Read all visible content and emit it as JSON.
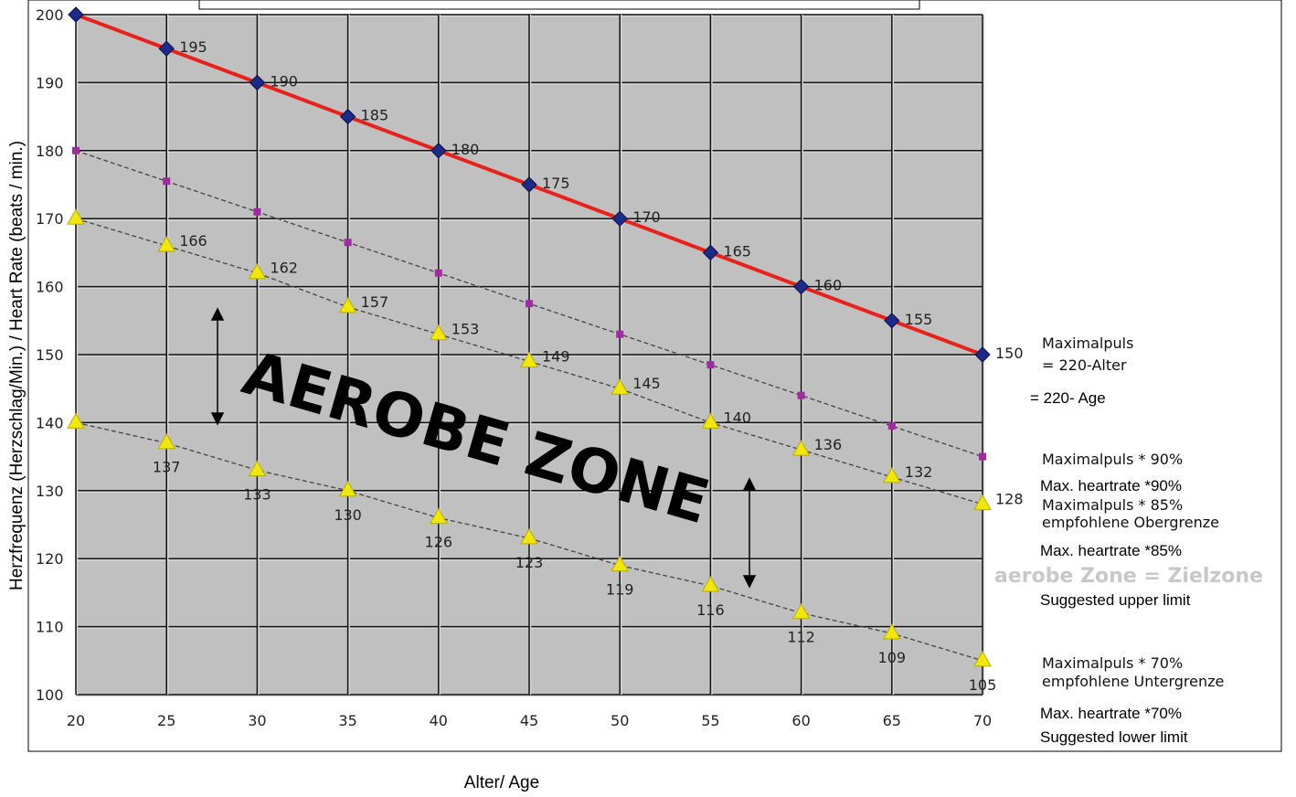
{
  "chart_data": {
    "type": "line",
    "x": [
      20,
      25,
      30,
      35,
      40,
      45,
      50,
      55,
      60,
      65,
      70
    ],
    "x_tick_labels": [
      "20",
      "25",
      "30",
      "35",
      "40",
      "45",
      "50",
      "55",
      "60",
      "65",
      "70"
    ],
    "y_ticks": [
      100,
      110,
      120,
      130,
      140,
      150,
      160,
      170,
      180,
      190,
      200
    ],
    "y_tick_labels": [
      "100",
      "110",
      "120",
      "130",
      "140",
      "150",
      "160",
      "170",
      "180",
      "190",
      "200"
    ],
    "xlim": [
      20,
      70
    ],
    "ylim": [
      100,
      200
    ],
    "grid": true,
    "xlabel": "Alter/ Age",
    "ylabel": "Herzfrequenz (Herzschlag/Min.) / Heart Rate (beats / min.)",
    "annotation": "AEROBE ZONE",
    "series": [
      {
        "name": "Maximalpuls = 220-Alter",
        "values": [
          200,
          195,
          190,
          185,
          180,
          175,
          170,
          165,
          160,
          155,
          150
        ],
        "labels": [
          "",
          "195",
          "190",
          "185",
          "180",
          "175",
          "170",
          "165",
          "160",
          "155",
          "150"
        ],
        "color": "#e8221b",
        "marker": "diamond",
        "marker_color": "#1c2a8a"
      },
      {
        "name": "Maximalpuls * 90%",
        "values": [
          180,
          175.5,
          171,
          166.5,
          162,
          157.5,
          153,
          148.5,
          144,
          139.5,
          135
        ],
        "labels": [
          "",
          "",
          "",
          "",
          "",
          "",
          "",
          "",
          "",
          "",
          ""
        ],
        "color": "#444444",
        "marker": "square",
        "marker_color": "#a12aa3"
      },
      {
        "name": "Maximalpuls * 85% empfohlene Obergrenze",
        "values": [
          170,
          166,
          162,
          157,
          153,
          149,
          145,
          140,
          136,
          132,
          128
        ],
        "labels": [
          "",
          "166",
          "162",
          "157",
          "153",
          "149",
          "145",
          "140",
          "136",
          "132",
          "128"
        ],
        "color": "#444444",
        "marker": "triangle",
        "marker_color": "#f2e70b"
      },
      {
        "name": "Maximalpuls * 70% empfohlene Untergrenze",
        "values": [
          140,
          137,
          133,
          130,
          126,
          123,
          119,
          116,
          112,
          109,
          105
        ],
        "labels": [
          "",
          "137",
          "133",
          "130",
          "126",
          "123",
          "119",
          "116",
          "112",
          "109",
          "105"
        ],
        "color": "#444444",
        "marker": "triangle",
        "marker_color": "#f2e70b"
      }
    ],
    "legend": {
      "max_de_1": "Maximalpuls",
      "max_de_2": "= 220-Alter",
      "max_en": "= 220- Age",
      "p90_de": "Maximalpuls * 90%",
      "p90_en": "Max. heartrate *90%",
      "p85_de_1": "Maximalpuls * 85%",
      "p85_de_2": "empfohlene Obergrenze",
      "p85_en_1": "Max. heartrate *85%",
      "zone_de": "aerobe Zone = Zielzone",
      "p85_en_2": "Suggested upper limit",
      "p70_de_1": "Maximalpuls * 70%",
      "p70_de_2": "empfohlene Untergrenze",
      "p70_en_1": "Max. heartrate *70%",
      "p70_en_2": "Suggested lower limit"
    },
    "colors": {
      "plot_bg": "#c0c0c0",
      "grid_dark": "#111111",
      "grid_light": "#d8d8d8",
      "zone_label_color": "#c8c8c8"
    }
  }
}
